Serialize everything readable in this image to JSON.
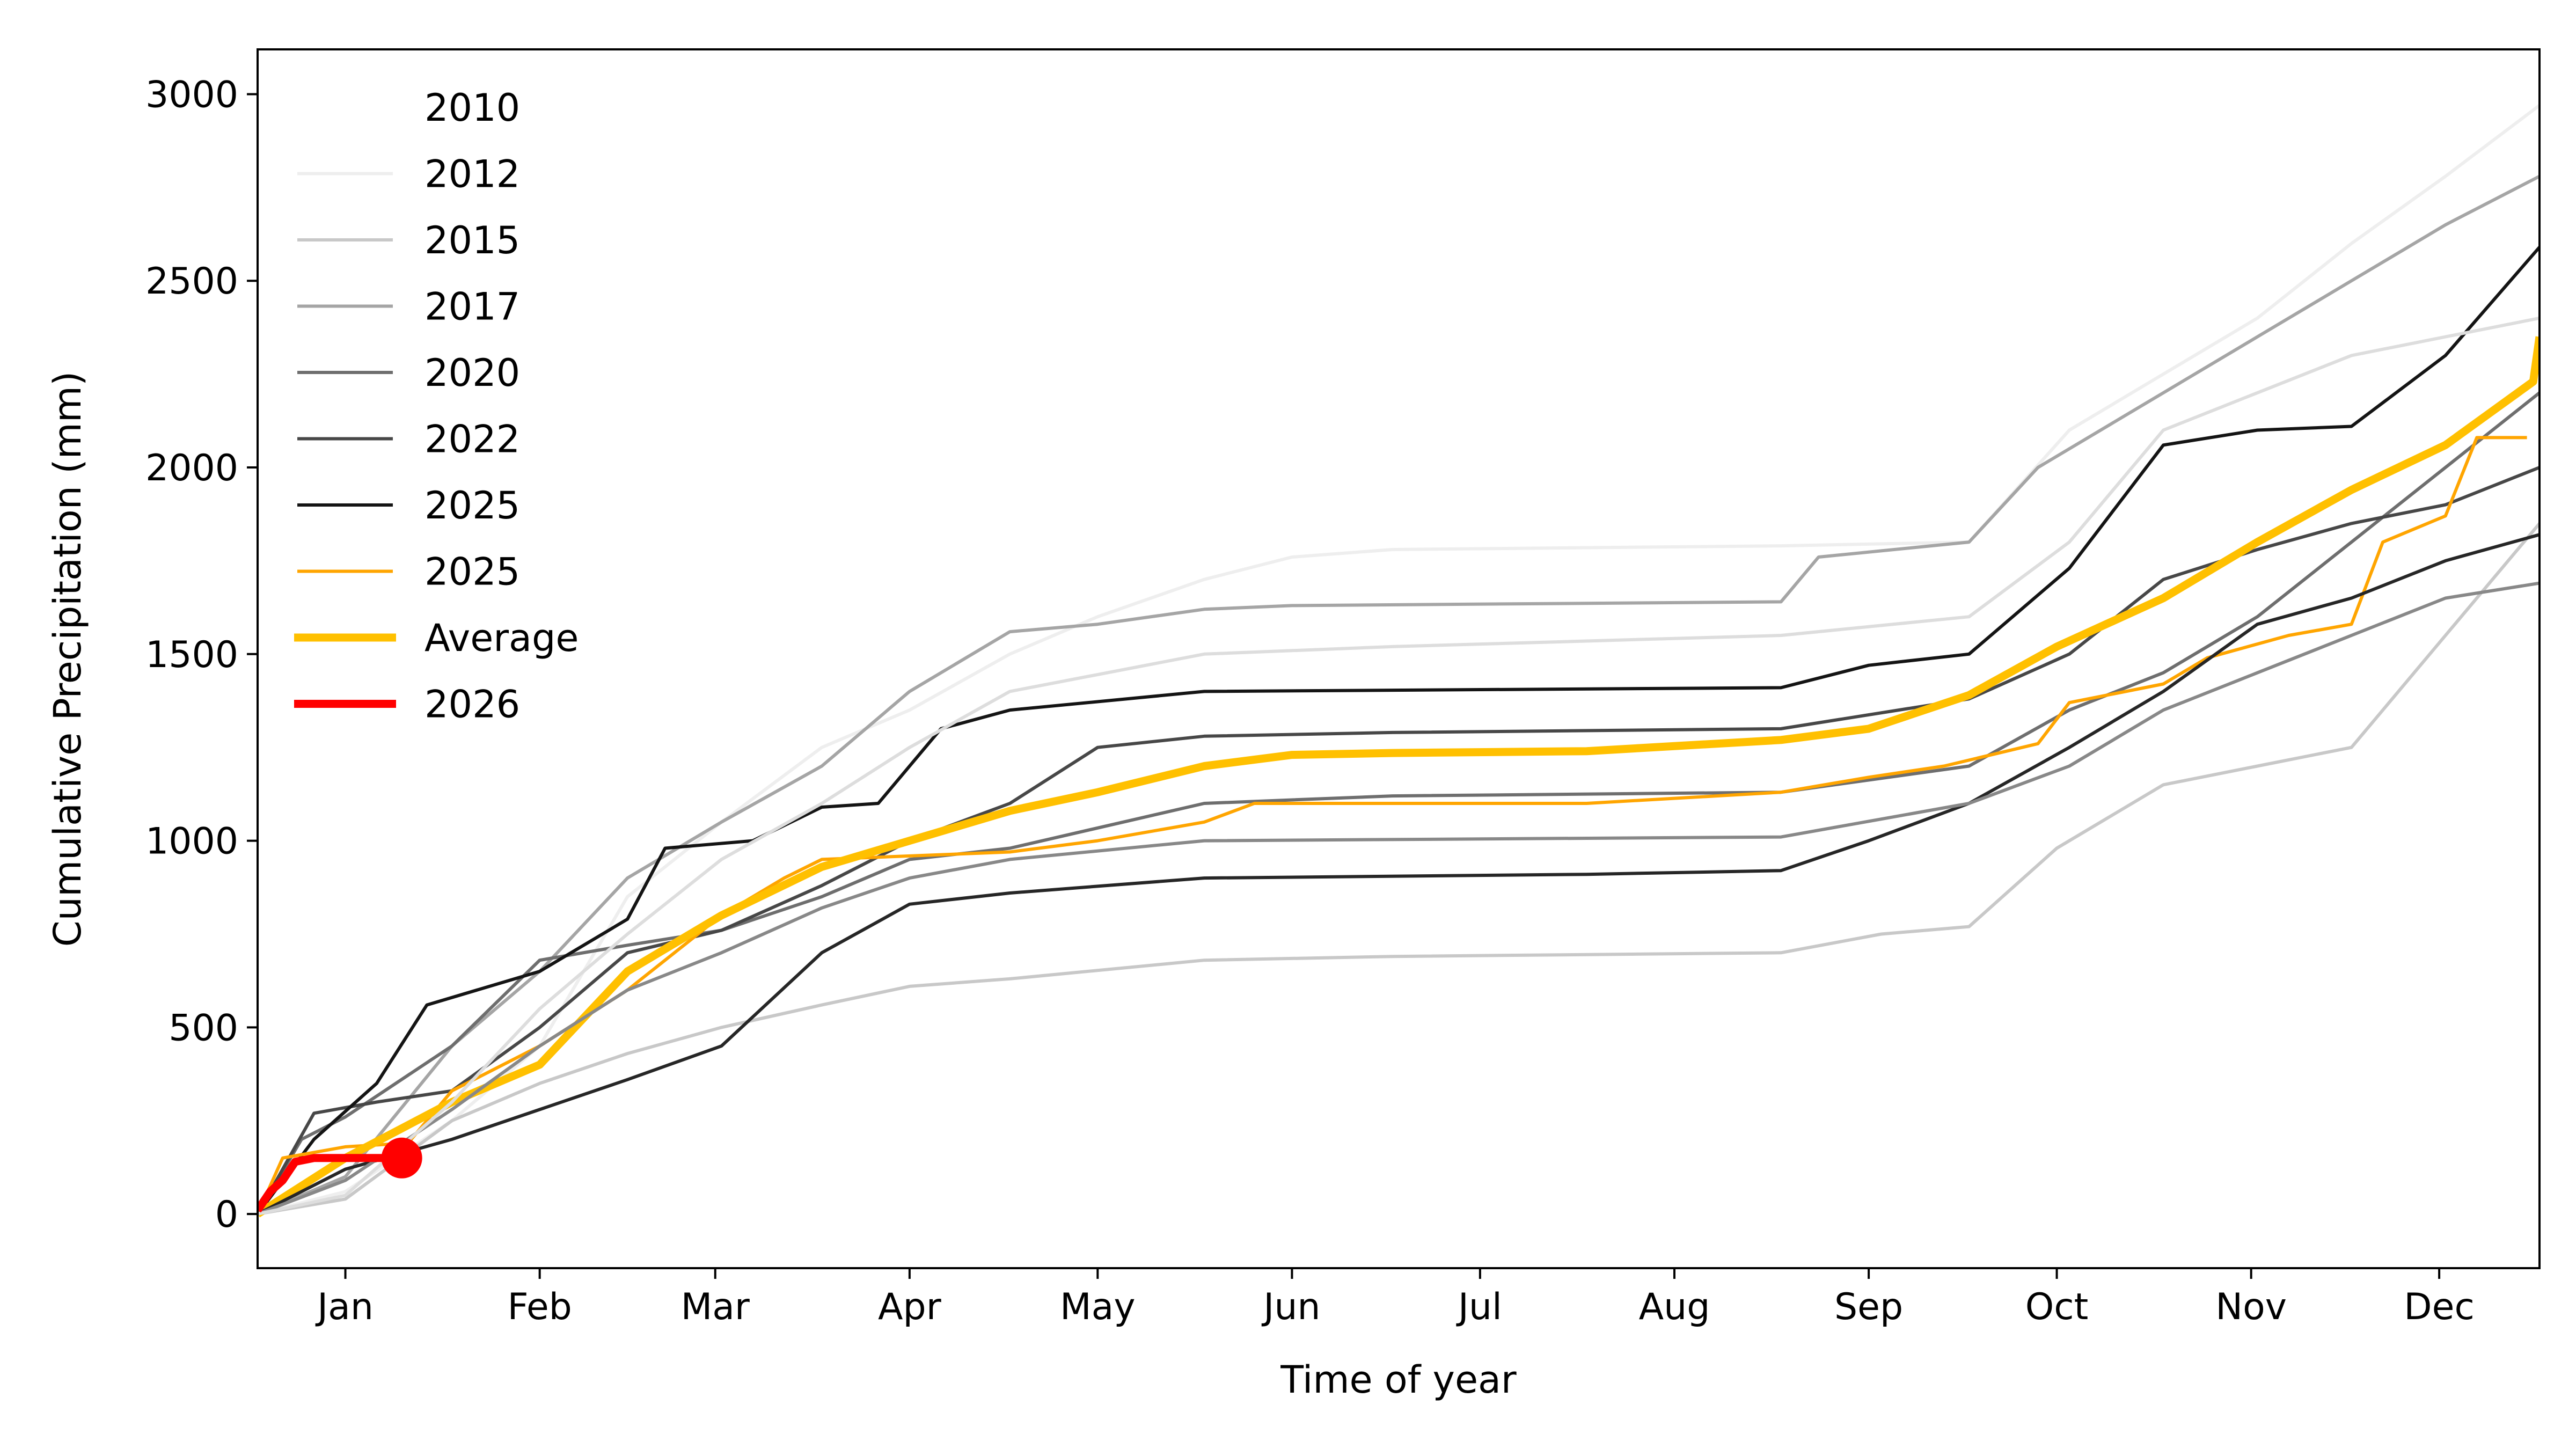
{
  "chart_data": {
    "type": "line",
    "title": "",
    "xlabel": "Time of year",
    "ylabel": "Cumulative Precipitation (mm)",
    "x_unit": "day of year",
    "xlim": [
      1,
      365
    ],
    "ylim": [
      -145,
      3120
    ],
    "grid": false,
    "legend_placement": "top-left",
    "x_ticks": [
      {
        "day": 15,
        "label": "Jan"
      },
      {
        "day": 46,
        "label": "Feb"
      },
      {
        "day": 74,
        "label": "Mar"
      },
      {
        "day": 105,
        "label": "Apr"
      },
      {
        "day": 135,
        "label": "May"
      },
      {
        "day": 166,
        "label": "Jun"
      },
      {
        "day": 196,
        "label": "Jul"
      },
      {
        "day": 227,
        "label": "Aug"
      },
      {
        "day": 258,
        "label": "Sep"
      },
      {
        "day": 288,
        "label": "Oct"
      },
      {
        "day": 319,
        "label": "Nov"
      },
      {
        "day": 349,
        "label": "Dec"
      }
    ],
    "y_ticks": [
      0,
      500,
      1000,
      1500,
      2000,
      2500,
      3000
    ],
    "series": [
      {
        "name": "2010",
        "color": "#ffffff",
        "width": "thin",
        "legend": true,
        "points": [
          [
            1,
            0
          ],
          [
            32,
            300
          ],
          [
            60,
            700
          ],
          [
            91,
            1000
          ],
          [
            121,
            1200
          ],
          [
            152,
            1300
          ],
          [
            244,
            1320
          ],
          [
            274,
            1400
          ],
          [
            305,
            1700
          ],
          [
            335,
            2000
          ],
          [
            365,
            2300
          ]
        ]
      },
      {
        "name": "2012",
        "color": "#eeeeee",
        "width": "thin",
        "legend": true,
        "points": [
          [
            1,
            0
          ],
          [
            15,
            60
          ],
          [
            32,
            250
          ],
          [
            46,
            450
          ],
          [
            60,
            850
          ],
          [
            75,
            1050
          ],
          [
            91,
            1250
          ],
          [
            105,
            1350
          ],
          [
            121,
            1500
          ],
          [
            135,
            1600
          ],
          [
            152,
            1700
          ],
          [
            166,
            1760
          ],
          [
            182,
            1780
          ],
          [
            244,
            1790
          ],
          [
            274,
            1800
          ],
          [
            290,
            2100
          ],
          [
            305,
            2250
          ],
          [
            320,
            2400
          ],
          [
            335,
            2600
          ],
          [
            350,
            2780
          ],
          [
            365,
            2970
          ]
        ]
      },
      {
        "name": "2015",
        "color": "#c8c8c8",
        "width": "thin",
        "legend": true,
        "points": [
          [
            1,
            0
          ],
          [
            15,
            40
          ],
          [
            32,
            250
          ],
          [
            46,
            350
          ],
          [
            60,
            430
          ],
          [
            75,
            500
          ],
          [
            91,
            560
          ],
          [
            105,
            610
          ],
          [
            121,
            630
          ],
          [
            152,
            680
          ],
          [
            182,
            690
          ],
          [
            244,
            700
          ],
          [
            260,
            750
          ],
          [
            274,
            770
          ],
          [
            288,
            980
          ],
          [
            305,
            1150
          ],
          [
            320,
            1200
          ],
          [
            335,
            1250
          ],
          [
            350,
            1550
          ],
          [
            365,
            1850
          ]
        ]
      },
      {
        "name": "2017",
        "color": "#a5a5a5",
        "width": "thin",
        "legend": true,
        "points": [
          [
            1,
            0
          ],
          [
            15,
            100
          ],
          [
            32,
            450
          ],
          [
            46,
            650
          ],
          [
            60,
            900
          ],
          [
            75,
            1050
          ],
          [
            91,
            1200
          ],
          [
            105,
            1400
          ],
          [
            121,
            1560
          ],
          [
            135,
            1580
          ],
          [
            152,
            1620
          ],
          [
            166,
            1630
          ],
          [
            244,
            1640
          ],
          [
            250,
            1760
          ],
          [
            274,
            1800
          ],
          [
            285,
            2000
          ],
          [
            305,
            2200
          ],
          [
            320,
            2350
          ],
          [
            335,
            2500
          ],
          [
            350,
            2650
          ],
          [
            365,
            2780
          ]
        ]
      },
      {
        "name": "2020",
        "color": "#6e6e6e",
        "width": "thin",
        "legend": true,
        "points": [
          [
            1,
            0
          ],
          [
            8,
            200
          ],
          [
            15,
            260
          ],
          [
            32,
            450
          ],
          [
            46,
            680
          ],
          [
            60,
            720
          ],
          [
            75,
            760
          ],
          [
            91,
            850
          ],
          [
            105,
            950
          ],
          [
            121,
            980
          ],
          [
            152,
            1100
          ],
          [
            182,
            1120
          ],
          [
            244,
            1130
          ],
          [
            274,
            1200
          ],
          [
            290,
            1350
          ],
          [
            305,
            1450
          ],
          [
            320,
            1600
          ],
          [
            335,
            1800
          ],
          [
            350,
            2000
          ],
          [
            365,
            2200
          ]
        ]
      },
      {
        "name": "2022",
        "color": "#474747",
        "width": "thin",
        "legend": true,
        "points": [
          [
            1,
            0
          ],
          [
            10,
            270
          ],
          [
            20,
            300
          ],
          [
            32,
            330
          ],
          [
            46,
            500
          ],
          [
            60,
            700
          ],
          [
            75,
            760
          ],
          [
            91,
            880
          ],
          [
            105,
            1000
          ],
          [
            121,
            1100
          ],
          [
            135,
            1250
          ],
          [
            152,
            1280
          ],
          [
            182,
            1290
          ],
          [
            244,
            1300
          ],
          [
            274,
            1380
          ],
          [
            290,
            1500
          ],
          [
            305,
            1700
          ],
          [
            320,
            1780
          ],
          [
            335,
            1850
          ],
          [
            350,
            1900
          ],
          [
            365,
            2000
          ]
        ]
      },
      {
        "name": "2025",
        "color": "#141414",
        "width": "thin",
        "legend": true,
        "points": [
          [
            1,
            0
          ],
          [
            10,
            200
          ],
          [
            20,
            350
          ],
          [
            28,
            560
          ],
          [
            46,
            650
          ],
          [
            60,
            790
          ],
          [
            66,
            980
          ],
          [
            80,
            1000
          ],
          [
            91,
            1090
          ],
          [
            100,
            1100
          ],
          [
            110,
            1300
          ],
          [
            121,
            1350
          ],
          [
            152,
            1400
          ],
          [
            244,
            1410
          ],
          [
            258,
            1470
          ],
          [
            274,
            1500
          ],
          [
            290,
            1730
          ],
          [
            305,
            2060
          ],
          [
            320,
            2100
          ],
          [
            335,
            2110
          ],
          [
            350,
            2300
          ],
          [
            365,
            2590
          ]
        ]
      },
      {
        "name": "2025",
        "color": "#ffa500",
        "width": "thin",
        "legend": true,
        "points": [
          [
            1,
            0
          ],
          [
            5,
            150
          ],
          [
            15,
            180
          ],
          [
            25,
            190
          ],
          [
            32,
            330
          ],
          [
            46,
            450
          ],
          [
            60,
            600
          ],
          [
            75,
            800
          ],
          [
            85,
            900
          ],
          [
            91,
            950
          ],
          [
            121,
            970
          ],
          [
            135,
            1000
          ],
          [
            152,
            1050
          ],
          [
            160,
            1100
          ],
          [
            213,
            1100
          ],
          [
            244,
            1130
          ],
          [
            258,
            1170
          ],
          [
            270,
            1200
          ],
          [
            285,
            1260
          ],
          [
            290,
            1370
          ],
          [
            305,
            1420
          ],
          [
            312,
            1490
          ],
          [
            325,
            1550
          ],
          [
            335,
            1580
          ],
          [
            340,
            1800
          ],
          [
            350,
            1870
          ],
          [
            355,
            2080
          ],
          [
            363,
            2080
          ]
        ]
      },
      {
        "name": "Average",
        "color": "#ffc000",
        "width": "thick",
        "legend": true,
        "points": [
          [
            1,
            0
          ],
          [
            15,
            150
          ],
          [
            32,
            300
          ],
          [
            46,
            400
          ],
          [
            60,
            650
          ],
          [
            75,
            800
          ],
          [
            91,
            930
          ],
          [
            105,
            1000
          ],
          [
            121,
            1080
          ],
          [
            135,
            1130
          ],
          [
            152,
            1200
          ],
          [
            166,
            1230
          ],
          [
            182,
            1235
          ],
          [
            213,
            1240
          ],
          [
            244,
            1270
          ],
          [
            258,
            1300
          ],
          [
            274,
            1390
          ],
          [
            288,
            1520
          ],
          [
            305,
            1650
          ],
          [
            320,
            1800
          ],
          [
            335,
            1940
          ],
          [
            350,
            2060
          ],
          [
            364,
            2230
          ],
          [
            365,
            2350
          ]
        ]
      },
      {
        "name": "",
        "color": "#262626",
        "width": "thin",
        "legend": false,
        "points": [
          [
            1,
            0
          ],
          [
            15,
            120
          ],
          [
            32,
            200
          ],
          [
            46,
            280
          ],
          [
            60,
            360
          ],
          [
            75,
            450
          ],
          [
            91,
            700
          ],
          [
            105,
            830
          ],
          [
            121,
            860
          ],
          [
            152,
            900
          ],
          [
            213,
            910
          ],
          [
            244,
            920
          ],
          [
            258,
            1000
          ],
          [
            274,
            1100
          ],
          [
            290,
            1250
          ],
          [
            305,
            1400
          ],
          [
            320,
            1580
          ],
          [
            335,
            1650
          ],
          [
            350,
            1750
          ],
          [
            365,
            1820
          ]
        ]
      },
      {
        "name": "",
        "color": "#888888",
        "width": "thin",
        "legend": false,
        "points": [
          [
            1,
            0
          ],
          [
            15,
            90
          ],
          [
            32,
            280
          ],
          [
            46,
            450
          ],
          [
            60,
            600
          ],
          [
            75,
            700
          ],
          [
            91,
            820
          ],
          [
            105,
            900
          ],
          [
            121,
            950
          ],
          [
            152,
            1000
          ],
          [
            244,
            1010
          ],
          [
            274,
            1100
          ],
          [
            290,
            1200
          ],
          [
            305,
            1350
          ],
          [
            320,
            1450
          ],
          [
            335,
            1550
          ],
          [
            350,
            1650
          ],
          [
            365,
            1690
          ]
        ]
      },
      {
        "name": "",
        "color": "#dddddd",
        "width": "thin",
        "legend": false,
        "points": [
          [
            1,
            0
          ],
          [
            15,
            50
          ],
          [
            32,
            300
          ],
          [
            46,
            550
          ],
          [
            60,
            750
          ],
          [
            75,
            950
          ],
          [
            91,
            1100
          ],
          [
            105,
            1250
          ],
          [
            121,
            1400
          ],
          [
            152,
            1500
          ],
          [
            182,
            1520
          ],
          [
            244,
            1550
          ],
          [
            274,
            1600
          ],
          [
            290,
            1800
          ],
          [
            305,
            2100
          ],
          [
            320,
            2200
          ],
          [
            335,
            2300
          ],
          [
            350,
            2350
          ],
          [
            365,
            2400
          ]
        ]
      },
      {
        "name": "2026",
        "color": "#ff0000",
        "width": "thick",
        "legend": true,
        "marker_at_last": true,
        "points": [
          [
            1,
            10
          ],
          [
            3,
            60
          ],
          [
            5,
            90
          ],
          [
            7,
            140
          ],
          [
            10,
            150
          ],
          [
            24,
            150
          ]
        ]
      }
    ]
  }
}
